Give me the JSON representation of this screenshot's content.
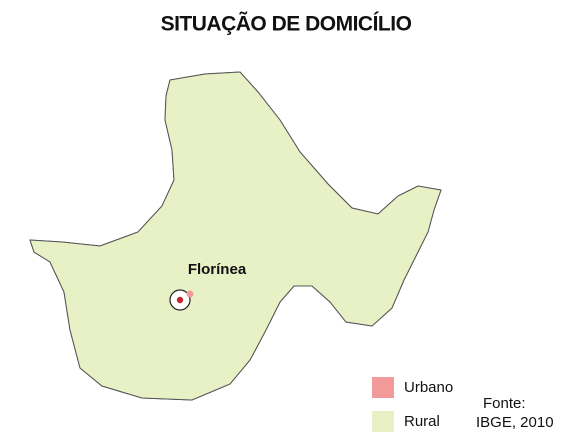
{
  "title": "SITUAÇÃO DE DOMICÍLIO",
  "place": "Florínea",
  "legend": [
    {
      "label": "Urbano",
      "color": "#f29a9a"
    },
    {
      "label": "Rural",
      "color": "#e8f1c6"
    }
  ],
  "source": [
    "Fonte:",
    "IBGE, 2010"
  ]
}
